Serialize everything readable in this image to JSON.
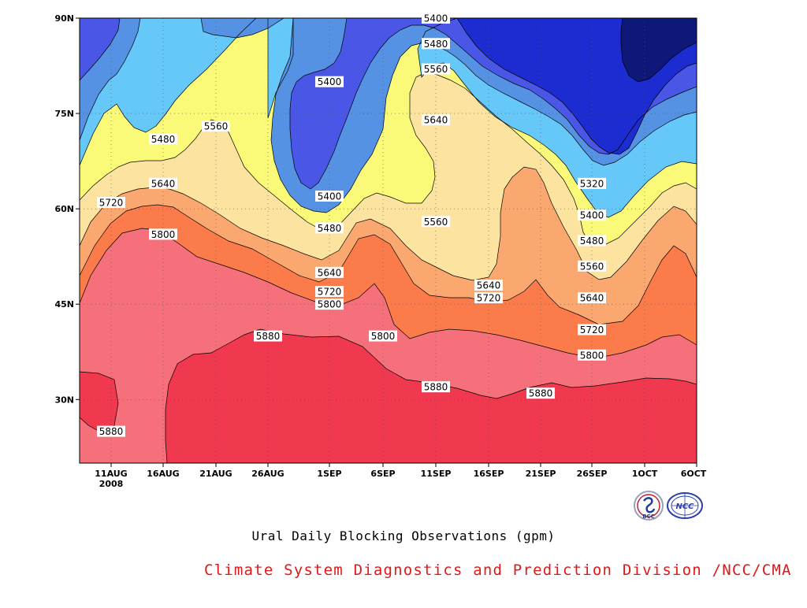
{
  "chart_data": {
    "type": "heatmap",
    "title": "Ural Daily Blocking Observations (gpm)",
    "xlabel": "",
    "ylabel": "",
    "year_label": "2008",
    "x_tick_labels": [
      "11AUG",
      "16AUG",
      "21AUG",
      "26AUG",
      "1SEP",
      "6SEP",
      "11SEP",
      "16SEP",
      "21SEP",
      "26SEP",
      "1OCT",
      "6OCT"
    ],
    "y_tick_labels": [
      "30N",
      "45N",
      "60N",
      "75N",
      "90N"
    ],
    "y_ticks": [
      30,
      45,
      60,
      75,
      90
    ],
    "ylim": [
      20,
      90
    ],
    "grid": true,
    "contour_levels": [
      5240,
      5320,
      5400,
      5480,
      5560,
      5640,
      5720,
      5800,
      5880
    ],
    "colors": {
      "le5240": "#0d1878",
      "5240_5320": "#1d2cd0",
      "5320_5400": "#4a56e6",
      "5400_5480": "#5592e4",
      "5480_5560": "#66c8f8",
      "5560_5640": "#fafa78",
      "5640_5720": "#fde3a0",
      "5720_5800": "#fba870",
      "5800_5880": "#fb7b4b",
      "5880_5960": "#f5707a",
      "ge5960": "#f0384e"
    },
    "contour_labels": [
      {
        "value": "5400",
        "date": "11SEP",
        "lat": 90
      },
      {
        "value": "5480",
        "date": "11SEP",
        "lat": 86
      },
      {
        "value": "5560",
        "date": "11SEP",
        "lat": 82
      },
      {
        "value": "5400",
        "date": "1SEP",
        "lat": 80
      },
      {
        "value": "5640",
        "date": "11SEP",
        "lat": 74
      },
      {
        "value": "5560",
        "date": "21AUG",
        "lat": 73
      },
      {
        "value": "5480",
        "date": "16AUG",
        "lat": 71
      },
      {
        "value": "5640",
        "date": "16AUG",
        "lat": 64
      },
      {
        "value": "5320",
        "date": "26SEP",
        "lat": 64
      },
      {
        "value": "5400",
        "date": "1SEP",
        "lat": 62
      },
      {
        "value": "5720",
        "date": "11AUG",
        "lat": 61
      },
      {
        "value": "5400",
        "date": "26SEP",
        "lat": 59
      },
      {
        "value": "5560",
        "date": "11SEP",
        "lat": 58
      },
      {
        "value": "5480",
        "date": "1SEP",
        "lat": 57
      },
      {
        "value": "5800",
        "date": "16AUG",
        "lat": 56
      },
      {
        "value": "5480",
        "date": "26SEP",
        "lat": 55
      },
      {
        "value": "5560",
        "date": "26SEP",
        "lat": 51
      },
      {
        "value": "5640",
        "date": "1SEP",
        "lat": 50
      },
      {
        "value": "5640",
        "date": "16SEP",
        "lat": 48
      },
      {
        "value": "5720",
        "date": "1SEP",
        "lat": 47
      },
      {
        "value": "5640",
        "date": "26SEP",
        "lat": 46
      },
      {
        "value": "5720",
        "date": "16SEP",
        "lat": 46
      },
      {
        "value": "5800",
        "date": "1SEP",
        "lat": 45
      },
      {
        "value": "5720",
        "date": "26SEP",
        "lat": 41
      },
      {
        "value": "5880",
        "date": "26AUG",
        "lat": 40
      },
      {
        "value": "5800",
        "date": "6SEP",
        "lat": 40
      },
      {
        "value": "5800",
        "date": "26SEP",
        "lat": 37
      },
      {
        "value": "5880",
        "date": "11SEP",
        "lat": 32
      },
      {
        "value": "5880",
        "date": "21SEP",
        "lat": 31
      },
      {
        "value": "5880",
        "date": "11AUG",
        "lat": 25
      }
    ]
  },
  "footer": {
    "credit": "Climate System Diagnostics and Prediction Division /NCC/CMA",
    "credit_color": "#e01818"
  },
  "logos": [
    {
      "name": "bcc-logo",
      "text": "BCC"
    },
    {
      "name": "ncc-logo",
      "text": "NCC"
    }
  ]
}
